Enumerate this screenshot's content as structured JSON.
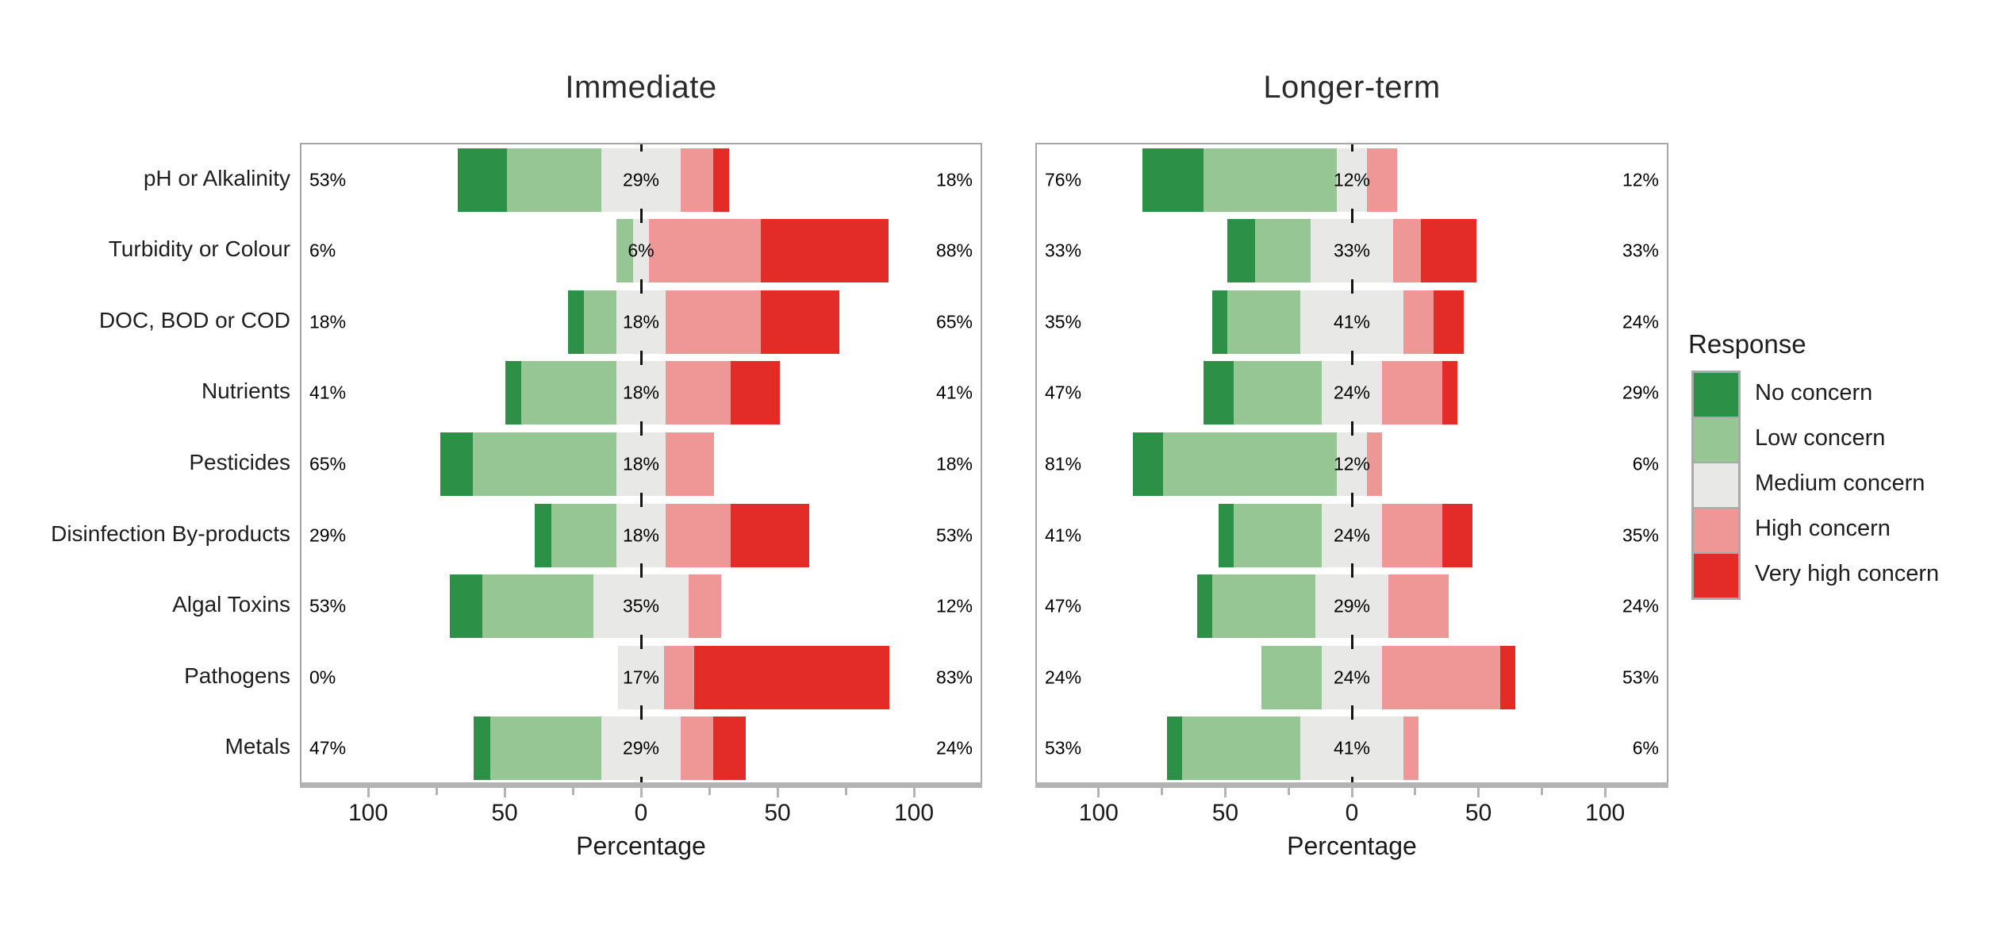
{
  "figure": {
    "axis": {
      "label": "Percentage",
      "ticks": [
        "100",
        "50",
        "0",
        "50",
        "100"
      ],
      "tick_values": [
        -100,
        -50,
        0,
        50,
        100
      ],
      "minor_tick_values": [
        -75,
        -25,
        25,
        75
      ]
    },
    "legend": {
      "title": "Response",
      "items": [
        {
          "label": "No concern",
          "color": "#2c9147"
        },
        {
          "label": "Low concern",
          "color": "#96c693"
        },
        {
          "label": "Medium concern",
          "color": "#e8e8e6"
        },
        {
          "label": "High concern",
          "color": "#ef9697"
        },
        {
          "label": "Very high concern",
          "color": "#e32b27"
        }
      ]
    },
    "colors": {
      "axis": "#b3b3b3",
      "panel_border": "#a6a6a6",
      "zero_tick": "#141414"
    }
  },
  "chart_data": [
    {
      "type": "bar",
      "variant": "diverging-stacked-likert",
      "title": "Immediate",
      "xlabel": "Percentage",
      "xlim": [
        -125,
        125
      ],
      "legend_position": "right",
      "grid": false,
      "categories": [
        "pH or Alkalinity",
        "Turbidity or Colour",
        "DOC, BOD or COD",
        "Nutrients",
        "Pesticides",
        "Disinfection By-products",
        "Algal Toxins",
        "Pathogens",
        "Metals"
      ],
      "series": [
        {
          "name": "No concern",
          "values": [
            18,
            0,
            6,
            6,
            12,
            6,
            12,
            0,
            6
          ]
        },
        {
          "name": "Low concern",
          "values": [
            35,
            6,
            12,
            35,
            53,
            24,
            41,
            0,
            41
          ]
        },
        {
          "name": "Medium concern",
          "values": [
            29,
            6,
            18,
            18,
            18,
            18,
            35,
            17,
            29
          ]
        },
        {
          "name": "High concern",
          "values": [
            12,
            41,
            35,
            24,
            18,
            24,
            12,
            11,
            12
          ]
        },
        {
          "name": "Very high concern",
          "values": [
            6,
            47,
            29,
            18,
            0,
            29,
            0,
            72,
            12
          ]
        }
      ],
      "row_labels": {
        "left": [
          "53%",
          "6%",
          "18%",
          "41%",
          "65%",
          "29%",
          "53%",
          "0%",
          "47%"
        ],
        "center": [
          "29%",
          "6%",
          "18%",
          "18%",
          "18%",
          "18%",
          "35%",
          "17%",
          "29%"
        ],
        "right": [
          "18%",
          "88%",
          "65%",
          "41%",
          "18%",
          "53%",
          "12%",
          "83%",
          "24%"
        ]
      }
    },
    {
      "type": "bar",
      "variant": "diverging-stacked-likert",
      "title": "Longer-term",
      "xlabel": "Percentage",
      "xlim": [
        -125,
        125
      ],
      "legend_position": "right",
      "grid": false,
      "categories": [
        "pH or Alkalinity",
        "Turbidity or Colour",
        "DOC, BOD or COD",
        "Nutrients",
        "Pesticides",
        "Disinfection By-products",
        "Algal Toxins",
        "Pathogens",
        "Metals"
      ],
      "series": [
        {
          "name": "No concern",
          "values": [
            24,
            11,
            6,
            12,
            12,
            6,
            6,
            0,
            6
          ]
        },
        {
          "name": "Low concern",
          "values": [
            53,
            22,
            29,
            35,
            69,
            35,
            41,
            24,
            47
          ]
        },
        {
          "name": "Medium concern",
          "values": [
            12,
            33,
            41,
            24,
            12,
            24,
            29,
            24,
            41
          ]
        },
        {
          "name": "High concern",
          "values": [
            12,
            11,
            12,
            24,
            6,
            24,
            24,
            47,
            6
          ]
        },
        {
          "name": "Very high concern",
          "values": [
            0,
            22,
            12,
            6,
            0,
            12,
            0,
            6,
            0
          ]
        }
      ],
      "row_labels": {
        "left": [
          "76%",
          "33%",
          "35%",
          "47%",
          "81%",
          "41%",
          "47%",
          "24%",
          "53%"
        ],
        "center": [
          "12%",
          "33%",
          "41%",
          "24%",
          "12%",
          "24%",
          "29%",
          "24%",
          "41%"
        ],
        "right": [
          "12%",
          "33%",
          "24%",
          "29%",
          "6%",
          "35%",
          "24%",
          "53%",
          "6%"
        ]
      }
    }
  ]
}
